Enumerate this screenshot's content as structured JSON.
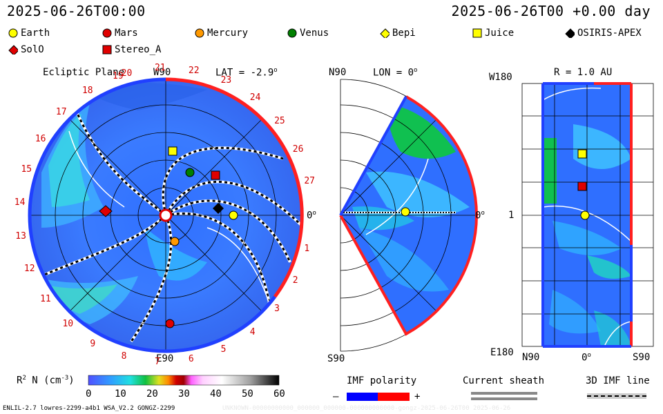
{
  "header": {
    "left_time": "2025-06-26T00:00",
    "right_time": "2025-06-26T00 +0.00 day"
  },
  "legend": [
    {
      "label": "Earth",
      "symbol": "circle",
      "color": "#ffff00"
    },
    {
      "label": "Mars",
      "symbol": "circle",
      "color": "#e00000"
    },
    {
      "label": "Mercury",
      "symbol": "circle",
      "color": "#ff9900"
    },
    {
      "label": "Venus",
      "symbol": "circle",
      "color": "#008000"
    },
    {
      "label": "Bepi",
      "symbol": "diamond",
      "color": "#ffff00"
    },
    {
      "label": "Juice",
      "symbol": "square",
      "color": "#ffff00"
    },
    {
      "label": "OSIRIS-APEX",
      "symbol": "diamond",
      "color": "#000000"
    },
    {
      "label": "SolO",
      "symbol": "diamond",
      "color": "#e00000"
    },
    {
      "label": "Stereo_A",
      "symbol": "square",
      "color": "#e00000"
    }
  ],
  "ecliptic": {
    "title": "Ecliptic Plane",
    "top_label": "W90",
    "lat_label": "LAT = -2.9",
    "lat_sup": "o",
    "bottom_label": "E90",
    "right_label": "0",
    "right_sup": "o",
    "day_ticks": [
      "20",
      "21",
      "22",
      "23",
      "24",
      "25",
      "26",
      "27",
      "0",
      "1",
      "2",
      "3",
      "4",
      "5",
      "6",
      "7",
      "8",
      "9",
      "10",
      "11",
      "12",
      "13",
      "14",
      "15",
      "16",
      "17",
      "18",
      "19"
    ]
  },
  "meridional": {
    "top_label": "N90",
    "lon_label": "LON = 0",
    "lon_sup": "o",
    "bottom_label": "S90",
    "right_label": "0",
    "right_sup": "o"
  },
  "latlon": {
    "title": "R = 1.0 AU",
    "top_left": "W180",
    "mid_left": "1",
    "bottom_left": "E180",
    "x_left": "N90",
    "x_mid": "0",
    "x_mid_sup": "o",
    "x_right": "S90"
  },
  "colorbar": {
    "label_main": "R",
    "label_sup": "2",
    "label_rest": " N (cm",
    "label_exp": "-3",
    "label_end": ")",
    "ticks": [
      "0",
      "10",
      "20",
      "30",
      "40",
      "50",
      "60"
    ],
    "colors": {
      "low": "#3030ff",
      "high": "#000000"
    }
  },
  "imf": {
    "title": "IMF polarity",
    "minus": "–",
    "plus": "+",
    "neg_color": "#0000ff",
    "pos_color": "#ff0000"
  },
  "sheath": {
    "title": "Current sheath"
  },
  "imfline": {
    "title": "3D IMF line"
  },
  "footer": {
    "left": "ENLIL-2.7 lowres-2299-a4b1 WSA_V2.2 GONGZ-2299",
    "right": "UNKNOWN-00000000000_000000_000000-000000000000-gongz-2025-06-26T00  2025-06-26"
  }
}
